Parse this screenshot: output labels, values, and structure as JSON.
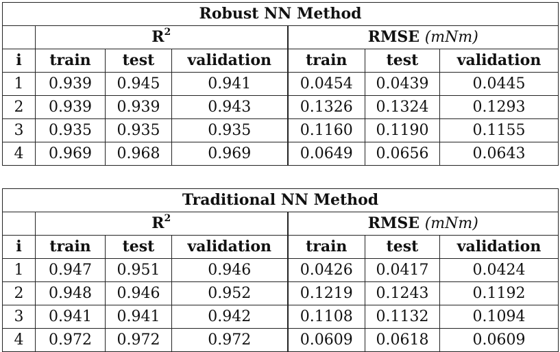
{
  "tables": [
    {
      "title": "Robust NN Method",
      "group_r2": "R",
      "group_r2_sup": "2",
      "group_rmse": "RMSE",
      "group_rmse_unit": "(mNm)",
      "columns": [
        "i",
        "train",
        "test",
        "validation",
        "train",
        "test",
        "validation"
      ],
      "rows": [
        [
          "1",
          "0.939",
          "0.945",
          "0.941",
          "0.0454",
          "0.0439",
          "0.0445"
        ],
        [
          "2",
          "0.939",
          "0.939",
          "0.943",
          "0.1326",
          "0.1324",
          "0.1293"
        ],
        [
          "3",
          "0.935",
          "0.935",
          "0.935",
          "0.1160",
          "0.1190",
          "0.1155"
        ],
        [
          "4",
          "0.969",
          "0.968",
          "0.969",
          "0.0649",
          "0.0656",
          "0.0643"
        ]
      ]
    },
    {
      "title": "Traditional NN Method",
      "group_r2": "R",
      "group_r2_sup": "2",
      "group_rmse": "RMSE",
      "group_rmse_unit": "(mNm)",
      "columns": [
        "i",
        "train",
        "test",
        "validation",
        "train",
        "test",
        "validation"
      ],
      "rows": [
        [
          "1",
          "0.947",
          "0.951",
          "0.946",
          "0.0426",
          "0.0417",
          "0.0424"
        ],
        [
          "2",
          "0.948",
          "0.946",
          "0.952",
          "0.1219",
          "0.1243",
          "0.1192"
        ],
        [
          "3",
          "0.941",
          "0.941",
          "0.942",
          "0.1108",
          "0.1132",
          "0.1094"
        ],
        [
          "4",
          "0.972",
          "0.972",
          "0.972",
          "0.0609",
          "0.0618",
          "0.0609"
        ]
      ]
    }
  ]
}
